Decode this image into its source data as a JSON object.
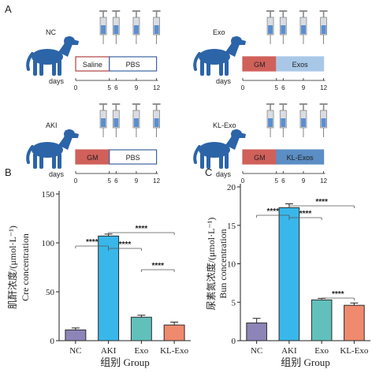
{
  "panel_labels": {
    "a": "A",
    "b": "B",
    "c": "C"
  },
  "protocol": {
    "days_label": "days",
    "colors": {
      "gm": "#d0605a",
      "exos": "#a9c8e8",
      "kl_exos": "#5b8ec4",
      "saline_border": "#b04040",
      "pbs_border": "#3b63a0",
      "dog": "#2c64a8"
    },
    "groups": [
      {
        "id": "nc",
        "name": "NC",
        "segment1": "Saline",
        "segment2": "PBS",
        "ticks": [
          "0",
          "5",
          "6",
          "9",
          "12"
        ]
      },
      {
        "id": "exo",
        "name": "Exo",
        "segment1": "GM",
        "segment2": "Exos",
        "ticks": [
          "0",
          "5",
          "6",
          "9",
          "12"
        ]
      },
      {
        "id": "aki",
        "name": "AKI",
        "segment1": "GM",
        "segment2": "PBS",
        "ticks": [
          "0",
          "5",
          "6",
          "9",
          "12"
        ]
      },
      {
        "id": "klexo",
        "name": "KL-Exo",
        "segment1": "GM",
        "segment2": "KL-Exos",
        "ticks": [
          "0",
          "5",
          "6",
          "9",
          "12"
        ]
      }
    ]
  },
  "chart_data": [
    {
      "type": "bar",
      "panel": "B",
      "categories": [
        "NC",
        "AKI",
        "Exo",
        "KL-Exo"
      ],
      "values": [
        11,
        107,
        24,
        16
      ],
      "errors": [
        2,
        2,
        2,
        3
      ],
      "colors": [
        "#8d84b8",
        "#39b7ea",
        "#62c0bc",
        "#f08a6e"
      ],
      "ylabel_cn": "肌酐浓度/(μmol·L⁻¹)",
      "ylabel_en": "Cre concentration",
      "xlabel": "组别 Group",
      "ylim": [
        0,
        150
      ],
      "yticks": [
        0,
        50,
        100,
        150
      ],
      "significance": [
        {
          "from": 0,
          "to": 1,
          "label": "****"
        },
        {
          "from": 1,
          "to": 2,
          "label": "****"
        },
        {
          "from": 1,
          "to": 3,
          "label": "****"
        },
        {
          "from": 2,
          "to": 3,
          "label": "****"
        }
      ]
    },
    {
      "type": "bar",
      "panel": "C",
      "categories": [
        "NC",
        "AKI",
        "Exo",
        "KL-Exo"
      ],
      "values": [
        2.3,
        17.3,
        5.3,
        4.6
      ],
      "errors": [
        0.6,
        0.5,
        0.2,
        0.3
      ],
      "colors": [
        "#8d84b8",
        "#39b7ea",
        "#62c0bc",
        "#f08a6e"
      ],
      "ylabel_cn": "尿素氮浓度/(μmol·L⁻¹)",
      "ylabel_en": "Bun concentration",
      "xlabel": "组别 Group",
      "ylim": [
        0,
        20
      ],
      "yticks": [
        0,
        5,
        10,
        15,
        20
      ],
      "significance": [
        {
          "from": 0,
          "to": 1,
          "label": "****"
        },
        {
          "from": 1,
          "to": 2,
          "label": "****"
        },
        {
          "from": 1,
          "to": 3,
          "label": "****"
        },
        {
          "from": 2,
          "to": 3,
          "label": "****"
        }
      ]
    }
  ]
}
